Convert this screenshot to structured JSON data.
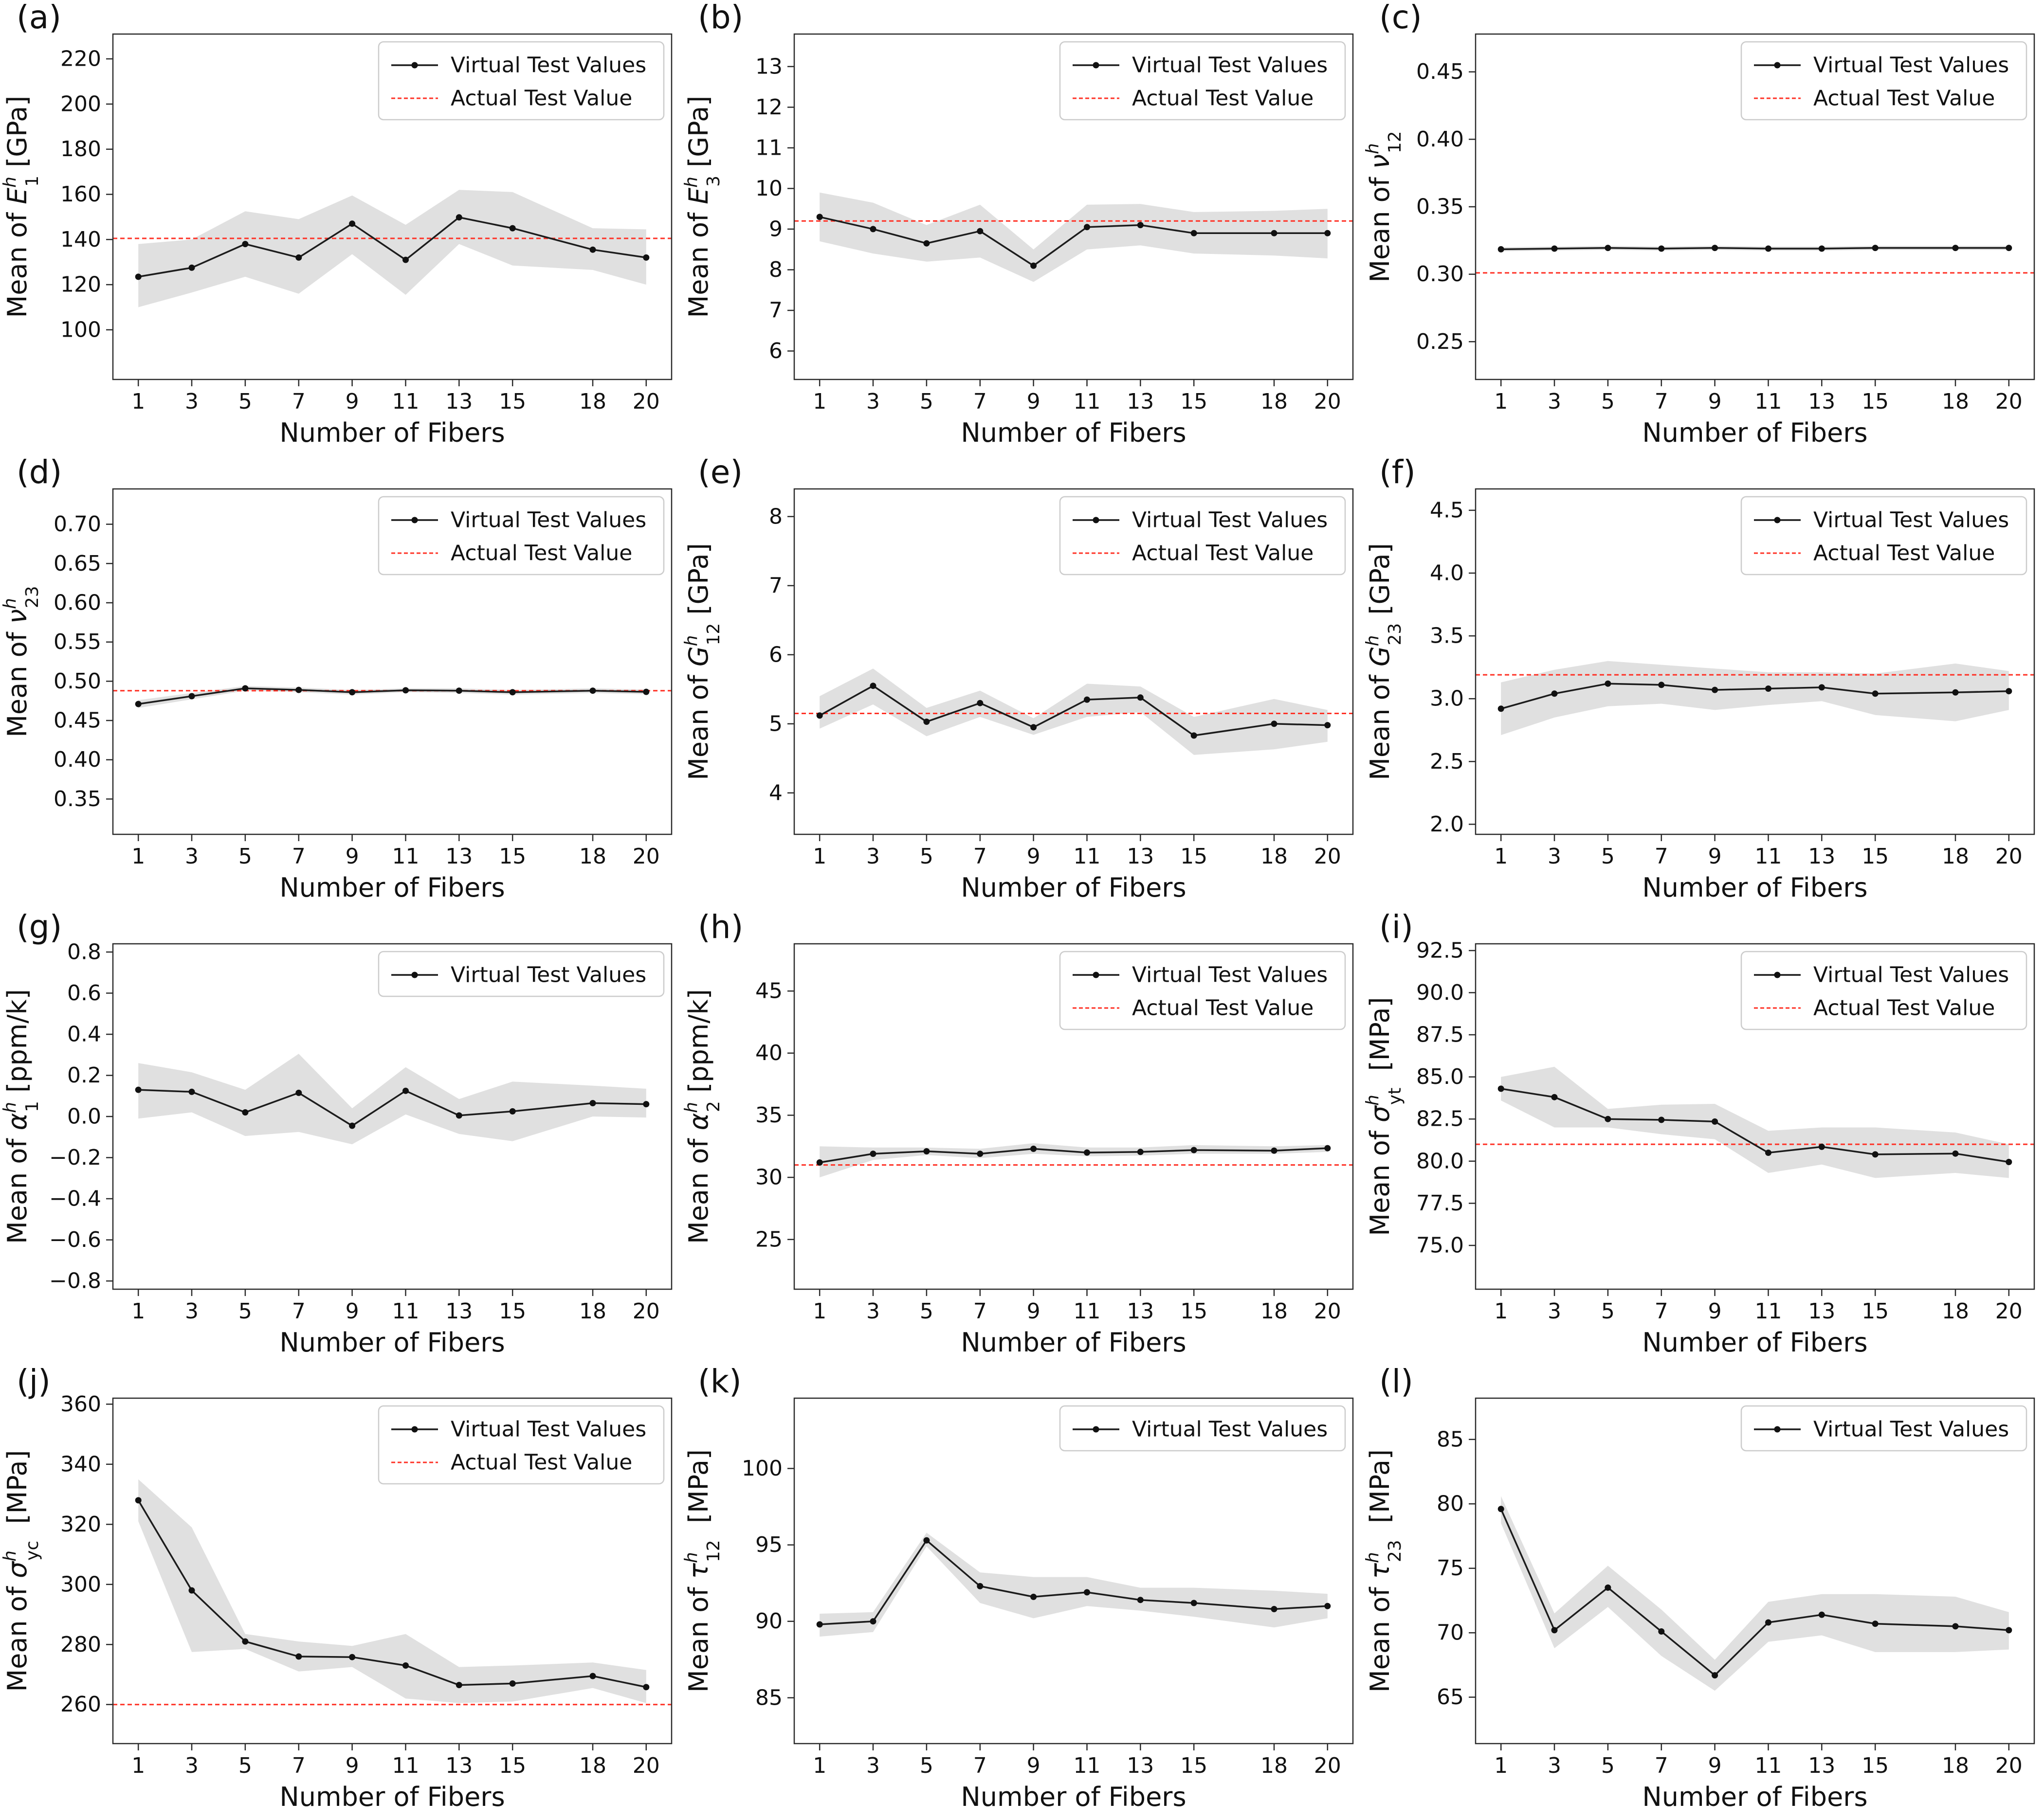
{
  "figure": {
    "xlabel": "Number of Fibers",
    "x_values": [
      1,
      3,
      5,
      7,
      9,
      11,
      13,
      15,
      18,
      20
    ],
    "xlim": [
      0.05,
      20.95
    ],
    "background": "#ffffff"
  },
  "legend_labels": {
    "virtual": "Virtual Test Values",
    "actual": "Actual Test Value"
  },
  "style": {
    "line_color": "#1c1c1c",
    "marker_color": "#111111",
    "band_color": "#cccccc",
    "actual_color": "#ff3125",
    "spine_color": "#2b2b2b",
    "legend_border": "#cccccc",
    "legend_bg": "#ffffff"
  },
  "chart_data": [
    {
      "type": "line",
      "letter": "(a)",
      "ylabel": {
        "prefix": "Mean of ",
        "sym": "E",
        "sup": "h",
        "sub": "1",
        "unit": " [GPa]"
      },
      "ylim": [
        78,
        231
      ],
      "yticks": [
        100,
        120,
        140,
        160,
        180,
        200,
        220
      ],
      "ydecimals": 0,
      "actual": 140.5,
      "mean": [
        123.5,
        127.5,
        138,
        132,
        147,
        131,
        149.8,
        145,
        135.5,
        132
      ],
      "lo": [
        110,
        116.5,
        123.5,
        116,
        133.5,
        115.5,
        138,
        128.5,
        126.5,
        120
      ],
      "hi": [
        138,
        140,
        152.5,
        149,
        159.5,
        146.5,
        162,
        161,
        145,
        144.5
      ],
      "legend": [
        "virtual",
        "actual"
      ]
    },
    {
      "type": "line",
      "letter": "(b)",
      "ylabel": {
        "prefix": "Mean of ",
        "sym": "E",
        "sup": "h",
        "sub": "3",
        "unit": " [GPa]"
      },
      "ylim": [
        5.3,
        13.8
      ],
      "yticks": [
        6,
        7,
        8,
        9,
        10,
        11,
        12,
        13
      ],
      "ydecimals": 0,
      "actual": 9.2,
      "mean": [
        9.3,
        9.0,
        8.65,
        8.95,
        8.1,
        9.05,
        9.1,
        8.9,
        8.9,
        8.9
      ],
      "lo": [
        8.7,
        8.4,
        8.2,
        8.3,
        7.7,
        8.5,
        8.6,
        8.4,
        8.35,
        8.28
      ],
      "hi": [
        9.9,
        9.65,
        9.1,
        9.6,
        8.5,
        9.6,
        9.62,
        9.42,
        9.45,
        9.5
      ],
      "legend": [
        "virtual",
        "actual"
      ]
    },
    {
      "type": "line",
      "letter": "(c)",
      "ylabel": {
        "prefix": "Mean of ",
        "sym": "ν",
        "sup": "h",
        "sub": "12",
        "unit": ""
      },
      "ylim": [
        0.222,
        0.478
      ],
      "yticks": [
        0.25,
        0.3,
        0.35,
        0.4,
        0.45
      ],
      "ydecimals": 2,
      "actual": 0.301,
      "mean": [
        0.3185,
        0.319,
        0.3195,
        0.319,
        0.3195,
        0.319,
        0.319,
        0.3195,
        0.3195,
        0.3195
      ],
      "lo": [
        0.317,
        0.3175,
        0.318,
        0.3175,
        0.318,
        0.3175,
        0.3175,
        0.318,
        0.318,
        0.318
      ],
      "hi": [
        0.32,
        0.3205,
        0.321,
        0.3205,
        0.321,
        0.3205,
        0.3205,
        0.321,
        0.321,
        0.321
      ],
      "legend": [
        "virtual",
        "actual"
      ]
    },
    {
      "type": "line",
      "letter": "(d)",
      "ylabel": {
        "prefix": "Mean of ",
        "sym": "ν",
        "sup": "h",
        "sub": "23",
        "unit": ""
      },
      "ylim": [
        0.305,
        0.745
      ],
      "yticks": [
        0.35,
        0.4,
        0.45,
        0.5,
        0.55,
        0.6,
        0.65,
        0.7
      ],
      "ydecimals": 2,
      "actual": 0.488,
      "mean": [
        0.471,
        0.481,
        0.491,
        0.489,
        0.486,
        0.4885,
        0.488,
        0.486,
        0.488,
        0.4865
      ],
      "lo": [
        0.466,
        0.477,
        0.488,
        0.486,
        0.483,
        0.486,
        0.485,
        0.483,
        0.485,
        0.4835
      ],
      "hi": [
        0.476,
        0.485,
        0.494,
        0.492,
        0.489,
        0.491,
        0.491,
        0.489,
        0.491,
        0.4895
      ],
      "legend": [
        "virtual",
        "actual"
      ]
    },
    {
      "type": "line",
      "letter": "(e)",
      "ylabel": {
        "prefix": "Mean of ",
        "sym": "G",
        "sup": "h",
        "sub": "12",
        "unit": " [GPa]"
      },
      "ylim": [
        3.4,
        8.4
      ],
      "yticks": [
        4,
        5,
        6,
        7,
        8
      ],
      "ydecimals": 0,
      "actual": 5.15,
      "mean": [
        5.12,
        5.55,
        5.03,
        5.3,
        4.95,
        5.35,
        5.38,
        4.83,
        5.0,
        4.98
      ],
      "lo": [
        4.93,
        5.28,
        4.82,
        5.1,
        4.84,
        5.1,
        5.17,
        4.55,
        4.63,
        4.74
      ],
      "hi": [
        5.4,
        5.8,
        5.23,
        5.48,
        5.08,
        5.58,
        5.54,
        5.1,
        5.36,
        5.2
      ],
      "legend": [
        "virtual",
        "actual"
      ]
    },
    {
      "type": "line",
      "letter": "(f)",
      "ylabel": {
        "prefix": "Mean of ",
        "sym": "G",
        "sup": "h",
        "sub": "23",
        "unit": " [GPa]"
      },
      "ylim": [
        1.92,
        4.67
      ],
      "yticks": [
        2.0,
        2.5,
        3.0,
        3.5,
        4.0,
        4.5
      ],
      "ydecimals": 1,
      "actual": 3.19,
      "mean": [
        2.92,
        3.04,
        3.12,
        3.11,
        3.07,
        3.08,
        3.09,
        3.04,
        3.05,
        3.06
      ],
      "lo": [
        2.71,
        2.85,
        2.94,
        2.96,
        2.91,
        2.95,
        2.98,
        2.87,
        2.82,
        2.91
      ],
      "hi": [
        3.13,
        3.23,
        3.3,
        3.27,
        3.24,
        3.21,
        3.21,
        3.2,
        3.28,
        3.22
      ],
      "legend": [
        "virtual",
        "actual"
      ]
    },
    {
      "type": "line",
      "letter": "(g)",
      "ylabel": {
        "prefix": "Mean of ",
        "sym": "α",
        "sup": "h",
        "sub": "1",
        "unit": " [ppm/k]"
      },
      "ylim": [
        -0.84,
        0.84
      ],
      "yticks": [
        -0.8,
        -0.6,
        -0.4,
        -0.2,
        0.0,
        0.2,
        0.4,
        0.6,
        0.8
      ],
      "ydecimals": 1,
      "actual": null,
      "mean": [
        0.13,
        0.12,
        0.02,
        0.115,
        -0.045,
        0.125,
        0.005,
        0.025,
        0.065,
        0.06
      ],
      "lo": [
        -0.01,
        0.02,
        -0.095,
        -0.075,
        -0.135,
        0.01,
        -0.085,
        -0.12,
        0.0,
        -0.005
      ],
      "hi": [
        0.26,
        0.215,
        0.13,
        0.305,
        0.04,
        0.24,
        0.085,
        0.17,
        0.15,
        0.135
      ],
      "legend": [
        "virtual"
      ]
    },
    {
      "type": "line",
      "letter": "(h)",
      "ylabel": {
        "prefix": "Mean of ",
        "sym": "α",
        "sup": "h",
        "sub": "2",
        "unit": " [ppm/k]"
      },
      "ylim": [
        21,
        48.8
      ],
      "yticks": [
        25,
        30,
        35,
        40,
        45
      ],
      "ydecimals": 0,
      "actual": 31,
      "mean": [
        31.2,
        31.9,
        32.1,
        31.9,
        32.3,
        32.0,
        32.05,
        32.2,
        32.15,
        32.35
      ],
      "lo": [
        30.0,
        31.4,
        31.8,
        31.55,
        31.9,
        31.7,
        31.75,
        31.9,
        31.9,
        32.05
      ],
      "hi": [
        32.5,
        32.4,
        32.4,
        32.3,
        32.75,
        32.4,
        32.4,
        32.6,
        32.5,
        32.6
      ],
      "legend": [
        "virtual",
        "actual"
      ]
    },
    {
      "type": "line",
      "letter": "(i)",
      "ylabel": {
        "prefix": "Mean of ",
        "sym": "σ",
        "sup": "h",
        "sub": "yt",
        "unit": "  [MPa]"
      },
      "ylim": [
        72.4,
        92.9
      ],
      "yticks": [
        75.0,
        77.5,
        80.0,
        82.5,
        85.0,
        87.5,
        90.0,
        92.5
      ],
      "ydecimals": 1,
      "actual": 81,
      "mean": [
        84.3,
        83.8,
        82.5,
        82.45,
        82.35,
        80.5,
        80.85,
        80.4,
        80.45,
        79.95
      ],
      "lo": [
        83.6,
        82.0,
        82.0,
        81.6,
        81.3,
        79.3,
        79.8,
        79.0,
        79.3,
        79.0
      ],
      "hi": [
        85.0,
        85.6,
        83.1,
        83.35,
        83.4,
        81.8,
        82.0,
        82.0,
        81.7,
        81.0
      ],
      "legend": [
        "virtual",
        "actual"
      ]
    },
    {
      "type": "line",
      "letter": "(j)",
      "ylabel": {
        "prefix": "Mean of ",
        "sym": "σ",
        "sup": "h",
        "sub": "yc",
        "unit": "  [MPa]"
      },
      "ylim": [
        247,
        362
      ],
      "yticks": [
        260,
        280,
        300,
        320,
        340,
        360
      ],
      "ydecimals": 0,
      "actual": 260,
      "mean": [
        328,
        298,
        281,
        276,
        275.8,
        273,
        266.5,
        267,
        269.5,
        265.8
      ],
      "lo": [
        321,
        277.5,
        278.5,
        271,
        272.5,
        262,
        260.5,
        261,
        265.5,
        260.5
      ],
      "hi": [
        335,
        319,
        283.5,
        281,
        279.5,
        283.5,
        272.5,
        273,
        274,
        271.5
      ],
      "legend": [
        "virtual",
        "actual"
      ]
    },
    {
      "type": "line",
      "letter": "(k)",
      "ylabel": {
        "prefix": "Mean of ",
        "sym": "τ",
        "sup": "h",
        "sub": "12",
        "unit": "  [MPa]"
      },
      "ylim": [
        82,
        104.6
      ],
      "yticks": [
        85,
        90,
        95,
        100
      ],
      "ydecimals": 0,
      "actual": null,
      "mean": [
        89.8,
        90.0,
        95.3,
        92.3,
        91.6,
        91.9,
        91.4,
        91.2,
        90.8,
        91.0
      ],
      "lo": [
        89.0,
        89.3,
        94.9,
        91.2,
        90.2,
        91.0,
        90.7,
        90.3,
        89.6,
        90.2
      ],
      "hi": [
        90.5,
        90.6,
        95.8,
        93.2,
        92.9,
        92.9,
        92.2,
        92.2,
        92.0,
        91.8
      ],
      "legend": [
        "virtual"
      ]
    },
    {
      "type": "line",
      "letter": "(l)",
      "ylabel": {
        "prefix": "Mean of ",
        "sym": "τ",
        "sup": "h",
        "sub": "23",
        "unit": "  [MPa]"
      },
      "ylim": [
        61.4,
        88.2
      ],
      "yticks": [
        65,
        70,
        75,
        80,
        85
      ],
      "ydecimals": 0,
      "actual": null,
      "mean": [
        79.6,
        70.2,
        73.5,
        70.1,
        66.7,
        70.8,
        71.4,
        70.7,
        70.5,
        70.2
      ],
      "lo": [
        78.5,
        68.8,
        72.0,
        68.2,
        65.5,
        69.3,
        69.8,
        68.5,
        68.5,
        68.7
      ],
      "hi": [
        80.6,
        71.5,
        75.2,
        71.8,
        67.9,
        72.4,
        73.0,
        73.0,
        72.8,
        71.6
      ],
      "legend": [
        "virtual"
      ]
    }
  ]
}
